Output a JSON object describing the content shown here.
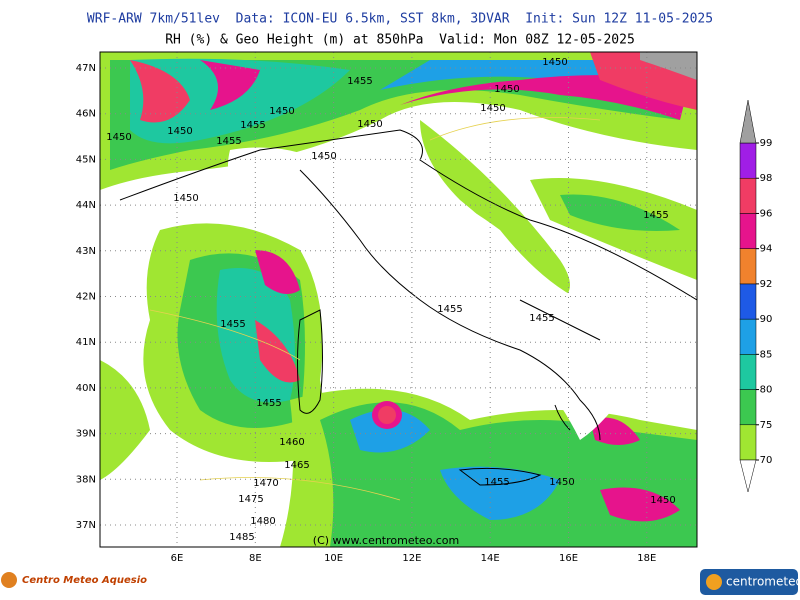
{
  "header": {
    "title": "WRF-ARW 7km/51lev  Data: ICON-EU 6.5km, SST 8km, 3DVAR  Init: Sun 12Z 11-05-2025",
    "subtitle": "RH (%) & Geo Height (m) at 850hPa  Valid: Mon 08Z 12-05-2025"
  },
  "map": {
    "lat_labels": [
      "47N",
      "46N",
      "45N",
      "44N",
      "43N",
      "42N",
      "41N",
      "40N",
      "39N",
      "38N",
      "37N"
    ],
    "lon_labels": [
      "6E",
      "8E",
      "10E",
      "12E",
      "14E",
      "16E",
      "18E"
    ],
    "contour_labels": [
      "1450",
      "1450",
      "1450",
      "1455",
      "1450",
      "1455",
      "1450",
      "1450",
      "1455",
      "1450",
      "1450",
      "1450",
      "1455",
      "1455",
      "1455",
      "1455",
      "1455",
      "1460",
      "1465",
      "1470",
      "1475",
      "1480",
      "1485",
      "1455",
      "1450",
      "1450"
    ],
    "credit": "(C) www.centrometeo.com"
  },
  "colorbar": {
    "levels": [
      70,
      75,
      80,
      85,
      90,
      92,
      94,
      96,
      98,
      99
    ],
    "colors": [
      "#a0e632",
      "#3cc850",
      "#1ec8a0",
      "#1ea0e6",
      "#1e5ae6",
      "#f0822d",
      "#e6148c",
      "#f03c64",
      "#a01ee6"
    ],
    "over_color": "#a0a0a0"
  },
  "footer": {
    "left_logo": "Centro Meteo Aquesio",
    "right_logo": "centrometeo"
  }
}
